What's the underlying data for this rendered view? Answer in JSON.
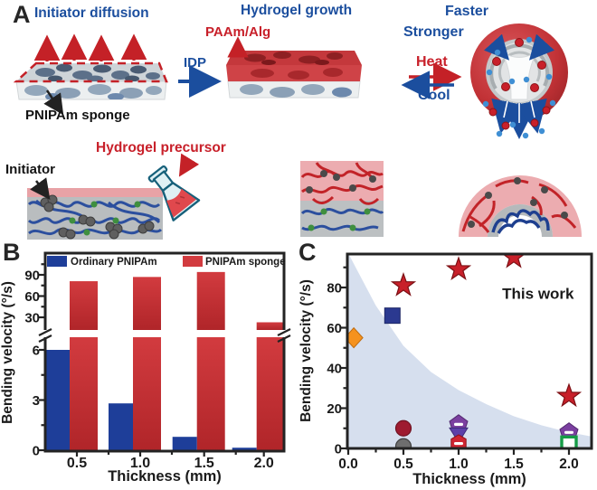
{
  "panelA": {
    "label": "A",
    "step1_title": "Initiator diffusion",
    "step2_title": "Hydrogel growth",
    "paam_alg": "PAAm/Alg",
    "idp_arrow": "IDP",
    "pnipam_sponge": "PNIPAm sponge",
    "faster": "Faster",
    "stronger": "Stronger",
    "heat": "Heat",
    "cool": "Cool",
    "initiator": "Initiator",
    "hydrogel_precursor": "Hydrogel precursor"
  },
  "panelB": {
    "label": "B"
  },
  "panelC": {
    "label": "C"
  },
  "chart_data": [
    {
      "panel": "B",
      "type": "bar",
      "categories": [
        "0.5",
        "1.0",
        "1.5",
        "2.0"
      ],
      "series": [
        {
          "name": "Ordinary PNIPAm",
          "color": "#1e3e99",
          "values": [
            6.0,
            2.8,
            0.8,
            0.15
          ]
        },
        {
          "name": "PNIPAm sponge",
          "color": "#d23b3f",
          "color_dark": "#b02529",
          "values": [
            81,
            87,
            94,
            23
          ]
        }
      ],
      "xlabel": "Thickness (mm)",
      "ylabel": "Bending velocity (°/s)",
      "axis_break": true,
      "lower_axis": {
        "ticks": [
          0,
          3,
          6
        ],
        "minor": [
          1.5,
          4.5
        ],
        "range": [
          0,
          6.8
        ]
      },
      "upper_axis": {
        "ticks": [
          30,
          60,
          90
        ],
        "minor": [
          45,
          75,
          105
        ],
        "range": [
          22,
          120
        ]
      },
      "legend_position": "top-inside",
      "grid": false
    },
    {
      "panel": "C",
      "type": "scatter",
      "xlabel": "Thickness (mm)",
      "ylabel": "Bending velocity (°/s)",
      "xtick_labels": [
        "0.0",
        "0.5",
        "1.0",
        "1.5",
        "2.0"
      ],
      "xticks": [
        0,
        0.5,
        1,
        1.5,
        2
      ],
      "xminor": [
        0.25,
        0.75,
        1.25,
        1.75
      ],
      "yticks": [
        0,
        20,
        40,
        60,
        80
      ],
      "yminor": [
        10,
        30,
        50,
        70,
        90
      ],
      "xlim": [
        0,
        2.2
      ],
      "ylim": [
        0,
        96.5
      ],
      "grid": false,
      "annotation": {
        "text": "This work",
        "x": 1.72,
        "y": 77
      },
      "shaded_region": {
        "color": "#d6dfee",
        "points": [
          [
            0,
            97
          ],
          [
            0.25,
            71
          ],
          [
            0.5,
            51
          ],
          [
            0.75,
            38
          ],
          [
            1.0,
            29
          ],
          [
            1.25,
            22
          ],
          [
            1.5,
            16
          ],
          [
            1.75,
            11.5
          ],
          [
            2.0,
            8
          ],
          [
            2.2,
            6
          ]
        ]
      },
      "series": [
        {
          "name": "This work (PNIPAm sponge bilayer)",
          "marker": "star",
          "color": "#c8202a",
          "edge": "#7c1014",
          "points": [
            [
              0.5,
              81
            ],
            [
              1.0,
              89
            ],
            [
              1.5,
              95
            ],
            [
              2.0,
              26
            ]
          ]
        },
        {
          "name": "ref orange diamond",
          "marker": "diamond",
          "color": "#f5921e",
          "edge": "#c06d10",
          "points": [
            [
              0.05,
              55
            ]
          ]
        },
        {
          "name": "ref navy square",
          "marker": "square",
          "color": "#2b3990",
          "edge": "#1d2766",
          "points": [
            [
              0.4,
              66
            ]
          ]
        },
        {
          "name": "ref dark-red circle",
          "marker": "circle",
          "color": "#9e1b30",
          "edge": "#6f1322",
          "points": [
            [
              0.5,
              10
            ]
          ]
        },
        {
          "name": "ref gray half circle",
          "marker": "circle-half",
          "color": "#6e6e6e",
          "edge": "#3f3f3f",
          "points": [
            [
              0.5,
              1
            ]
          ]
        },
        {
          "name": "ref purple pentagon",
          "marker": "pentagon-dash",
          "color": "#7b3fa0",
          "edge": "#532a70",
          "points": [
            [
              1.0,
              12
            ],
            [
              2.0,
              8
            ]
          ]
        },
        {
          "name": "ref purple triangle",
          "marker": "triangle-down",
          "color": "#5d3fa8",
          "edge": "#3f2a78",
          "points": [
            [
              1.0,
              7
            ]
          ]
        },
        {
          "name": "ref red hexagon",
          "marker": "hexagon-dash",
          "color": "#cf2531",
          "edge": "#8e1018",
          "points": [
            [
              1.0,
              2.5
            ]
          ]
        },
        {
          "name": "ref green open square",
          "marker": "square-open",
          "color": "#169c46",
          "points": [
            [
              2.0,
              3
            ]
          ]
        }
      ]
    }
  ]
}
